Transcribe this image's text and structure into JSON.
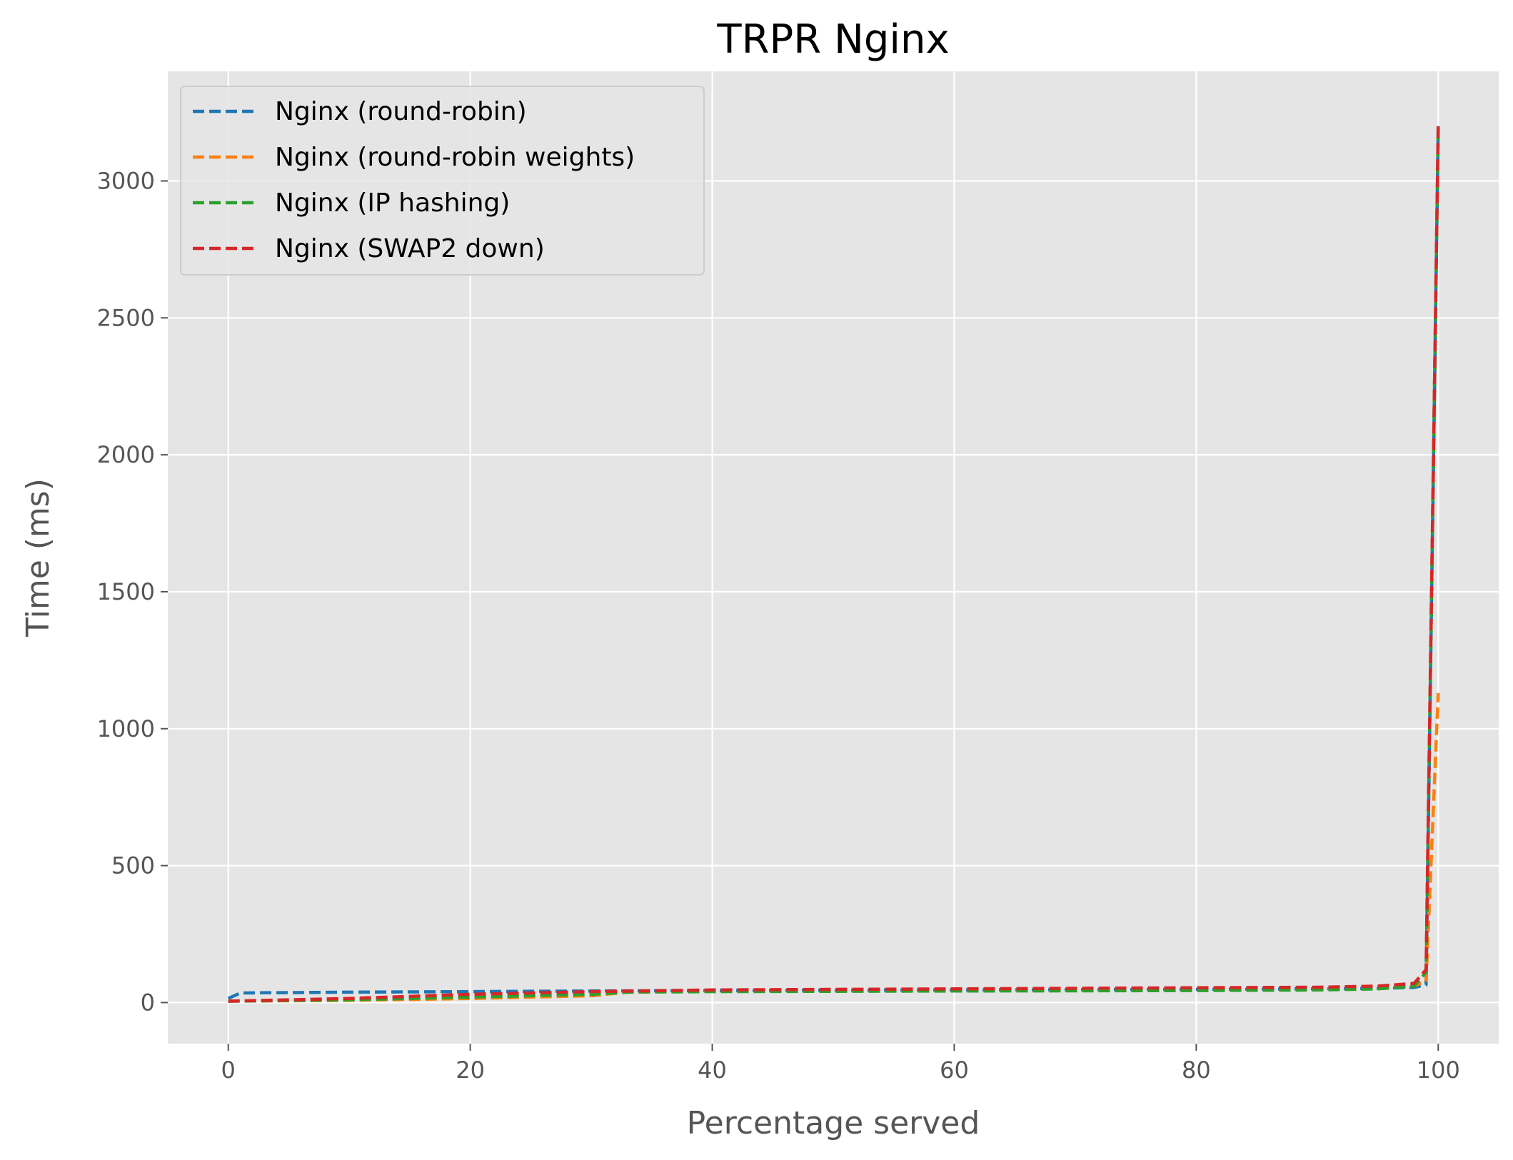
{
  "chart_data": {
    "type": "line",
    "title": "TRPR Nginx",
    "xlabel": "Percentage served",
    "ylabel": "Time (ms)",
    "xlim": [
      -5,
      105
    ],
    "ylim": [
      -150,
      3400
    ],
    "xticks": [
      0,
      20,
      40,
      60,
      80,
      100
    ],
    "yticks": [
      0,
      500,
      1000,
      1500,
      2000,
      2500,
      3000
    ],
    "grid": true,
    "legend_position": "top-left",
    "line_style": "dashed",
    "background": "#e5e5e5",
    "series": [
      {
        "name": "Nginx (round-robin)",
        "color": "#1f77b4",
        "x": [
          0,
          1,
          10,
          20,
          30,
          40,
          50,
          60,
          70,
          80,
          90,
          95,
          98,
          99,
          100
        ],
        "y": [
          15,
          35,
          38,
          40,
          42,
          44,
          45,
          46,
          47,
          48,
          50,
          52,
          55,
          65,
          3200
        ]
      },
      {
        "name": "Nginx (round-robin weights)",
        "color": "#ff7f0e",
        "x": [
          0,
          10,
          20,
          30,
          33,
          40,
          50,
          60,
          70,
          80,
          90,
          95,
          98,
          99,
          100
        ],
        "y": [
          5,
          8,
          15,
          25,
          38,
          42,
          44,
          45,
          46,
          47,
          49,
          52,
          60,
          80,
          1130
        ]
      },
      {
        "name": "Nginx (IP hashing)",
        "color": "#2ca02c",
        "x": [
          0,
          10,
          20,
          30,
          33,
          40,
          50,
          60,
          70,
          80,
          90,
          95,
          98,
          99,
          100
        ],
        "y": [
          5,
          10,
          20,
          30,
          38,
          40,
          41,
          42,
          43,
          44,
          46,
          50,
          60,
          110,
          3200
        ]
      },
      {
        "name": "Nginx (SWAP2 down)",
        "color": "#d62728",
        "x": [
          0,
          10,
          20,
          30,
          40,
          50,
          60,
          70,
          80,
          90,
          95,
          98,
          99,
          100
        ],
        "y": [
          5,
          15,
          30,
          40,
          46,
          48,
          50,
          52,
          54,
          56,
          60,
          70,
          120,
          3210
        ]
      }
    ]
  }
}
